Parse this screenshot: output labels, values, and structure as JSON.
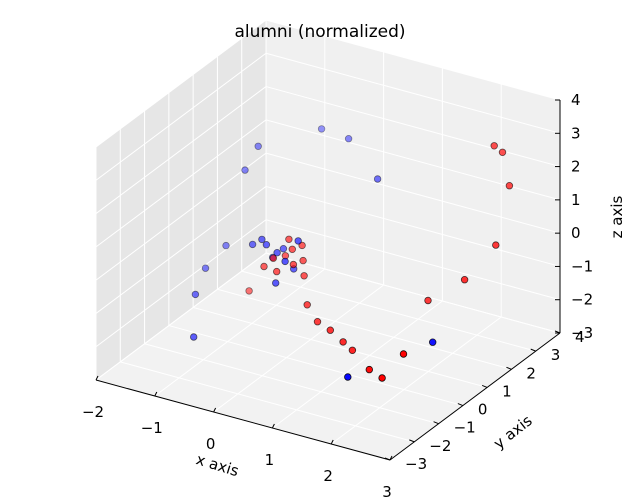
{
  "chart_data": {
    "type": "scatter",
    "projection": "3d",
    "title": "alumni (normalized)",
    "xlabel": "x axis",
    "ylabel": "y axis",
    "zlabel": "z axis",
    "xlim": [
      -2,
      3
    ],
    "ylim": [
      -3,
      4
    ],
    "zlim": [
      -3,
      4
    ],
    "xticks": [
      "−2",
      "−1",
      "0",
      "1",
      "2",
      "3"
    ],
    "yticks": [
      "−3",
      "−2",
      "−1",
      "0",
      "1",
      "2",
      "3",
      "4"
    ],
    "zticks": [
      "−3",
      "−2",
      "−1",
      "0",
      "1",
      "2",
      "3",
      "4"
    ],
    "grid": true,
    "colors": {
      "class_a": "#ff0000",
      "class_b": "#0000ff"
    },
    "series": [
      {
        "color": "#ff0000",
        "points": [
          [
            -0.3,
            -0.2,
            -0.3
          ],
          [
            -0.1,
            -0.3,
            0.1
          ],
          [
            0.0,
            -0.4,
            -0.2
          ],
          [
            0.2,
            -0.2,
            0.0
          ],
          [
            0.1,
            0.0,
            0.3
          ],
          [
            -0.1,
            0.2,
            -0.1
          ],
          [
            0.1,
            0.4,
            0.2
          ],
          [
            0.3,
            0.0,
            -0.4
          ],
          [
            0.0,
            0.1,
            0.5
          ],
          [
            0.2,
            0.2,
            -0.1
          ],
          [
            0.6,
            -0.6,
            -0.8
          ],
          [
            0.9,
            -0.9,
            -1.0
          ],
          [
            1.2,
            -1.1,
            -1.0
          ],
          [
            1.5,
            -1.3,
            -1.1
          ],
          [
            1.7,
            -1.4,
            -1.2
          ],
          [
            2.4,
            -2.4,
            -0.9
          ],
          [
            2.7,
            -2.6,
            -0.9
          ],
          [
            2.9,
            -2.2,
            -0.3
          ],
          [
            2.5,
            2.5,
            3.2
          ],
          [
            2.6,
            2.6,
            3.0
          ],
          [
            2.8,
            2.4,
            2.2
          ],
          [
            2.9,
            1.6,
            0.9
          ],
          [
            2.7,
            0.8,
            0.2
          ],
          [
            2.2,
            0.5,
            -0.5
          ],
          [
            -0.8,
            0.4,
            -1.6
          ]
        ]
      },
      {
        "color": "#0000ff",
        "points": [
          [
            -0.7,
            0.3,
            -0.1
          ],
          [
            -0.5,
            0.2,
            0.2
          ],
          [
            -0.4,
            0.4,
            -0.4
          ],
          [
            -0.3,
            -0.1,
            0.3
          ],
          [
            -0.2,
            0.1,
            0.0
          ],
          [
            0.0,
            0.3,
            -0.5
          ],
          [
            0.2,
            0.0,
            0.6
          ],
          [
            -0.1,
            -0.2,
            -0.7
          ],
          [
            0.1,
            -0.3,
            0.1
          ],
          [
            -0.3,
            0.6,
            -0.2
          ],
          [
            -1.3,
            -0.6,
            -1.4
          ],
          [
            -1.0,
            -1.4,
            -2.1
          ],
          [
            -1.5,
            0.3,
            -1.2
          ],
          [
            -1.4,
            0.9,
            -0.8
          ],
          [
            -1.1,
            1.5,
            2.0
          ],
          [
            -1.2,
            1.2,
            1.4
          ],
          [
            -0.6,
            2.9,
            2.0
          ],
          [
            -0.1,
            2.8,
            2.0
          ],
          [
            0.6,
            2.3,
            1.4
          ],
          [
            2.9,
            -1.0,
            -0.6
          ],
          [
            2.2,
            -2.8,
            -1.0
          ]
        ]
      }
    ]
  }
}
